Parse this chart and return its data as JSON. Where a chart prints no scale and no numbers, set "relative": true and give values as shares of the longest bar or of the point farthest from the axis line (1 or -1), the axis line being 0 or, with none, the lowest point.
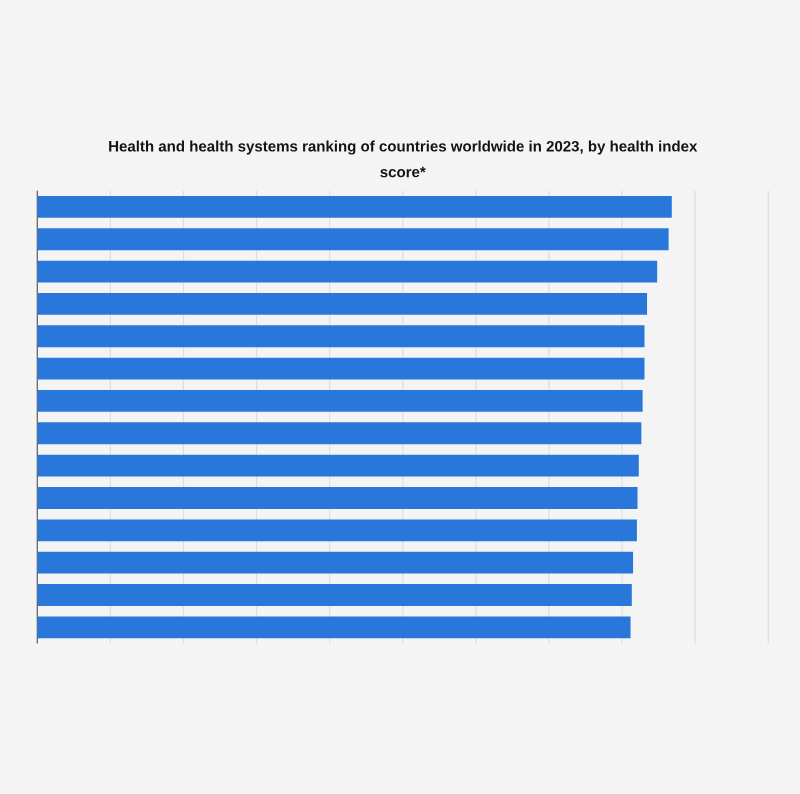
{
  "chart_data": {
    "type": "bar",
    "orientation": "horizontal",
    "relative": true,
    "title": "Health and health systems ranking of countries worldwide in 2023, by health index score*",
    "categories": [
      null,
      null,
      null,
      null,
      null,
      null,
      null,
      null,
      null,
      null,
      null,
      null,
      null,
      null
    ],
    "values": [
      1.0,
      0.995,
      0.977,
      0.961,
      0.957,
      0.957,
      0.954,
      0.952,
      0.948,
      0.946,
      0.945,
      0.939,
      0.937,
      0.935
    ],
    "color": "#2a77db",
    "grid": "x"
  }
}
